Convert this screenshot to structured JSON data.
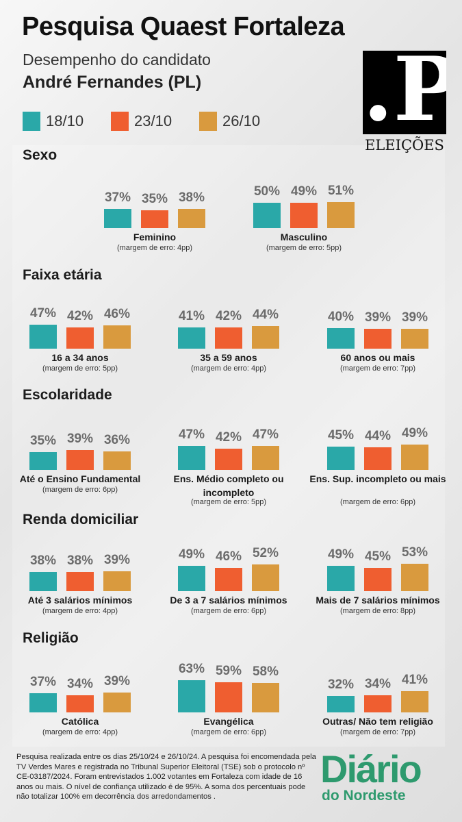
{
  "header": {
    "title": "Pesquisa Quaest Fortaleza",
    "subtitle": "Desempenho do candidato",
    "candidate": "André Fernandes (PL)"
  },
  "logo": {
    "mark": ".P",
    "caption": "ELEIÇÕES"
  },
  "colors": {
    "s1": "#2aa8a8",
    "s2": "#ef5e30",
    "s3": "#d99a3e"
  },
  "chart_data": {
    "type": "bar",
    "series": [
      {
        "name": "18/10",
        "color": "#2aa8a8"
      },
      {
        "name": "23/10",
        "color": "#ef5e30"
      },
      {
        "name": "26/10",
        "color": "#d99a3e"
      }
    ],
    "value_suffix": "%",
    "sections": [
      {
        "title": "Sexo",
        "groups": [
          {
            "label": "Feminino",
            "margin": "(margem de erro: 4pp)",
            "values": [
              37,
              35,
              38
            ]
          },
          {
            "label": "Masculino",
            "margin": "(margem de erro: 5pp)",
            "values": [
              50,
              49,
              51
            ]
          }
        ]
      },
      {
        "title": "Faixa etária",
        "groups": [
          {
            "label": "16 a 34 anos",
            "margin": "(margem de erro: 5pp)",
            "values": [
              47,
              42,
              46
            ]
          },
          {
            "label": "35 a 59 anos",
            "margin": "(margem de erro: 4pp)",
            "values": [
              41,
              42,
              44
            ]
          },
          {
            "label": "60 anos ou mais",
            "margin": "(margem de erro: 7pp)",
            "values": [
              40,
              39,
              39
            ]
          }
        ]
      },
      {
        "title": "Escolaridade",
        "groups": [
          {
            "label": "Até o Ensino Fundamental",
            "margin": "(margem de erro: 6pp)",
            "values": [
              35,
              39,
              36
            ]
          },
          {
            "label": "Ens. Médio completo ou incompleto",
            "margin": "(margem de erro: 5pp)",
            "values": [
              47,
              42,
              47
            ]
          },
          {
            "label": "Ens. Sup. incompleto ou mais",
            "margin": "(margem de erro: 6pp)",
            "values": [
              45,
              44,
              49
            ]
          }
        ]
      },
      {
        "title": "Renda domiciliar",
        "groups": [
          {
            "label": "Até 3 salários mínimos",
            "margin": "(margem de erro: 4pp)",
            "values": [
              38,
              38,
              39
            ]
          },
          {
            "label": "De 3 a 7 salários mínimos",
            "margin": "(margem de erro: 6pp)",
            "values": [
              49,
              46,
              52
            ]
          },
          {
            "label": "Mais de 7 salários mínimos",
            "margin": "(margem de erro: 8pp)",
            "values": [
              49,
              45,
              53
            ]
          }
        ]
      },
      {
        "title": "Religião",
        "groups": [
          {
            "label": "Católica",
            "margin": "(margem de erro: 4pp)",
            "values": [
              37,
              34,
              39
            ]
          },
          {
            "label": "Evangélica",
            "margin": "(margem de erro: 6pp)",
            "values": [
              63,
              59,
              58
            ]
          },
          {
            "label": "Outras/ Não tem religião",
            "margin": "(margem de erro: 7pp)",
            "values": [
              32,
              34,
              41
            ]
          }
        ]
      }
    ]
  },
  "footer": {
    "note": "Pesquisa realizada entre os dias 25/10/24 e 26/10/24. A pesquisa foi encomendada pela TV Verdes Mares e registrada no Tribunal Superior Eleitoral (TSE) sob o protocolo nº CE-03187/2024. Foram entrevistados 1.002 votantes em Fortaleza com idade de 16 anos ou mais. O nível de confiança utilizado é de 95%. A soma dos percentuais pode não totalizar 100% em decorrência dos arredondamentos .",
    "brand_main": "Diário",
    "brand_sub": "do Nordeste"
  }
}
